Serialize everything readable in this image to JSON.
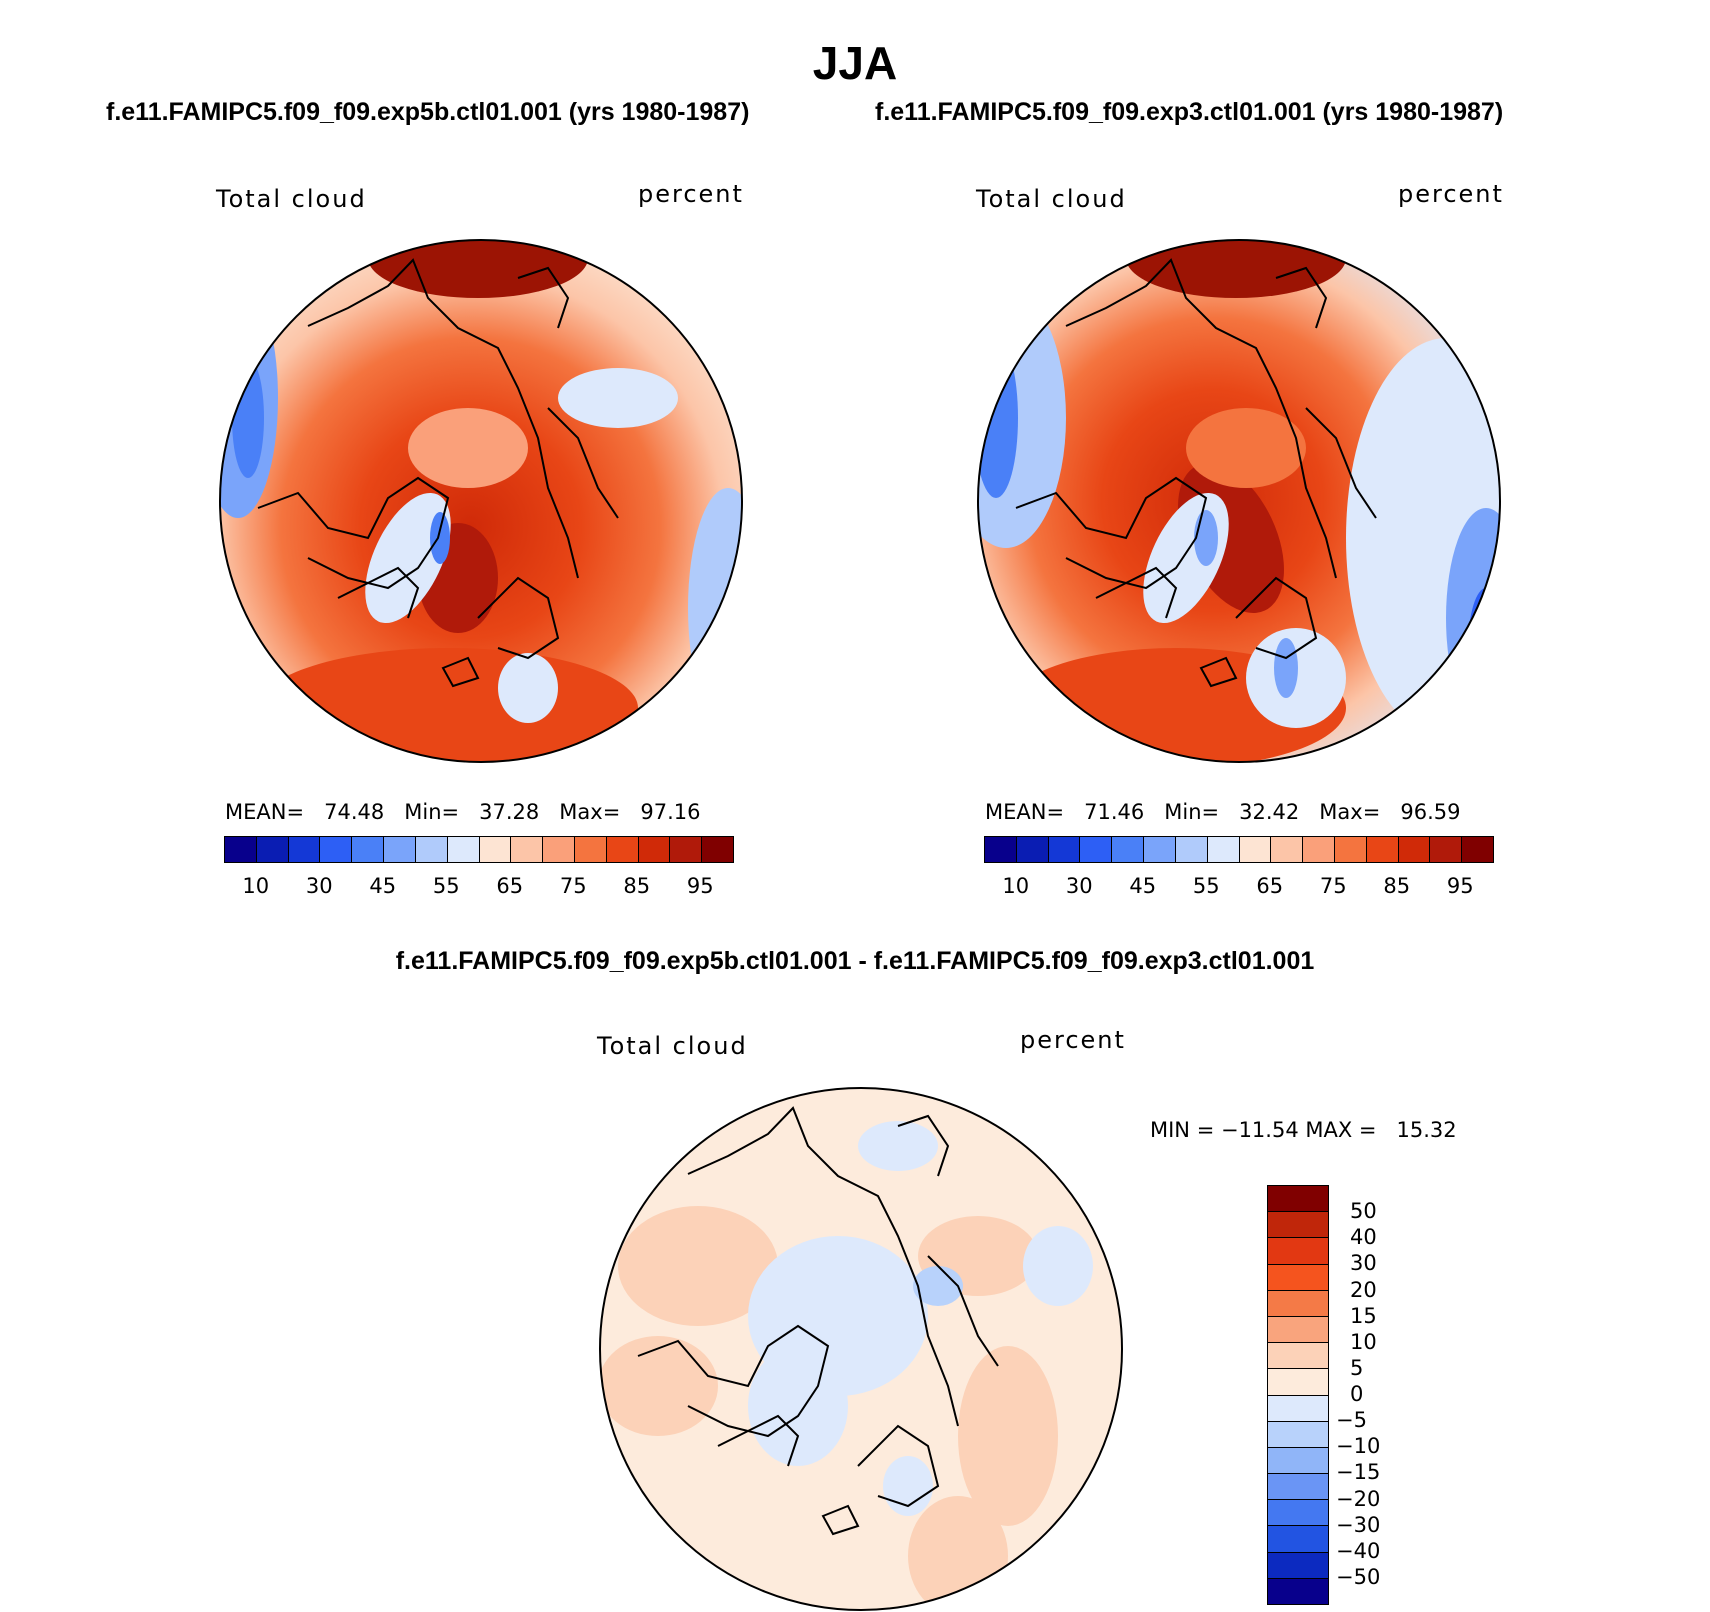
{
  "title": "JJA",
  "panels": {
    "case1": {
      "title": "f.e11.FAMIPC5.f09_f09.exp5b.ctl01.001 (yrs 1980-1987)",
      "variable": "Total cloud",
      "units": "percent",
      "mean_label": "MEAN=",
      "mean": "74.48",
      "min_label": "Min=",
      "min": "37.28",
      "max_label": "Max=",
      "max": "97.16"
    },
    "case2": {
      "title": "f.e11.FAMIPC5.f09_f09.exp3.ctl01.001 (yrs 1980-1987)",
      "variable": "Total cloud",
      "units": "percent",
      "mean_label": "MEAN=",
      "mean": "71.46",
      "min_label": "Min=",
      "min": "32.42",
      "max_label": "Max=",
      "max": "96.59"
    },
    "diff": {
      "title": "f.e11.FAMIPC5.f09_f09.exp5b.ctl01.001 - f.e11.FAMIPC5.f09_f09.exp3.ctl01.001",
      "variable": "Total cloud",
      "units": "percent",
      "minmax_text": "MIN = −11.54 MAX =   15.32"
    }
  },
  "colorbar_main": {
    "colors": [
      "#08008c",
      "#0a1db3",
      "#1438d6",
      "#2d5ff5",
      "#4a80f7",
      "#7aa4fa",
      "#b0cbfb",
      "#dde9fc",
      "#fde4d3",
      "#fcc5a8",
      "#faa07a",
      "#f4743f",
      "#e84616",
      "#d02a08",
      "#b01a0a",
      "#800000"
    ],
    "tick_labels": [
      "10",
      "30",
      "45",
      "55",
      "65",
      "75",
      "85",
      "95"
    ]
  },
  "colorbar_diff": {
    "colors": [
      "#800000",
      "#c0260a",
      "#e23812",
      "#f5541e",
      "#f47a47",
      "#f9a47d",
      "#fcd2b8",
      "#fdebdc",
      "#dde9fc",
      "#b8d2fb",
      "#90b5f8",
      "#6a95f5",
      "#4478f1",
      "#2254e2",
      "#0c2ac0",
      "#08008c"
    ],
    "tick_labels": [
      "50",
      "40",
      "30",
      "20",
      "15",
      "10",
      "5",
      "0",
      "−5",
      "−10",
      "−15",
      "−20",
      "−30",
      "−40",
      "−50"
    ]
  }
}
